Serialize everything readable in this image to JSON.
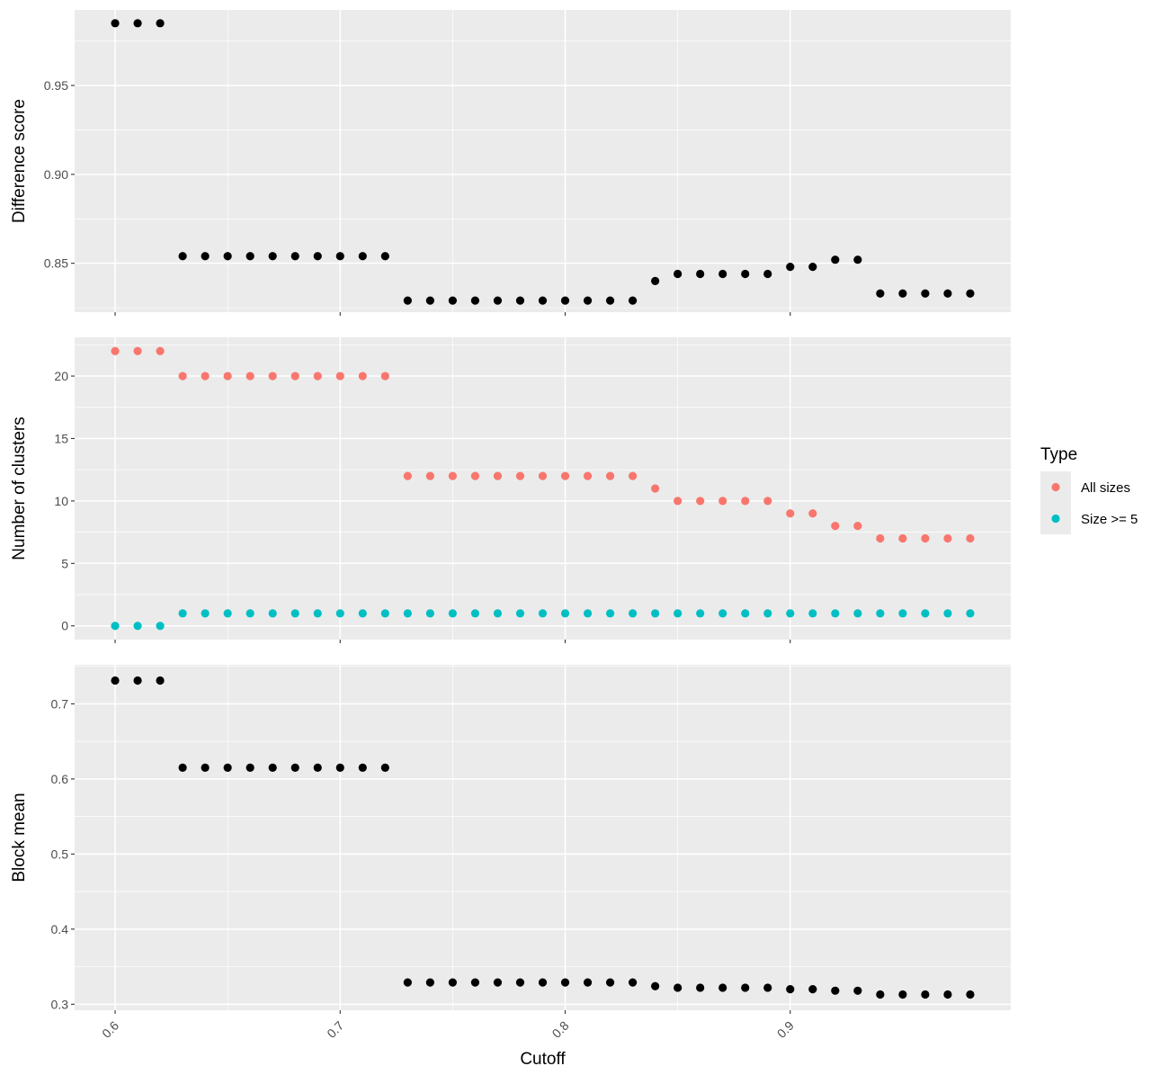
{
  "chart_data": [
    {
      "type": "scatter",
      "title": "",
      "xlabel": "",
      "ylabel": "Difference score",
      "xlim": [
        0.582,
        0.998
      ],
      "ylim": [
        0.8225,
        0.9925
      ],
      "yticks": [
        0.85,
        0.9,
        0.95
      ],
      "ytick_labels": [
        "0.85",
        "0.90",
        "0.95"
      ],
      "grid": true,
      "series": [
        {
          "color": "#000000",
          "x": [
            0.6,
            0.61,
            0.62,
            0.63,
            0.64,
            0.65,
            0.66,
            0.67,
            0.68,
            0.69,
            0.7,
            0.71,
            0.72,
            0.73,
            0.74,
            0.75,
            0.76,
            0.77,
            0.78,
            0.79,
            0.8,
            0.81,
            0.82,
            0.83,
            0.84,
            0.85,
            0.86,
            0.87,
            0.88,
            0.89,
            0.9,
            0.91,
            0.92,
            0.93,
            0.94,
            0.95,
            0.96,
            0.97,
            0.98
          ],
          "values": [
            0.985,
            0.985,
            0.985,
            0.854,
            0.854,
            0.854,
            0.854,
            0.854,
            0.854,
            0.854,
            0.854,
            0.854,
            0.854,
            0.829,
            0.829,
            0.829,
            0.829,
            0.829,
            0.829,
            0.829,
            0.829,
            0.829,
            0.829,
            0.829,
            0.84,
            0.844,
            0.844,
            0.844,
            0.844,
            0.844,
            0.848,
            0.848,
            0.852,
            0.852,
            0.833,
            0.833,
            0.833,
            0.833,
            0.833
          ]
        }
      ]
    },
    {
      "type": "scatter",
      "title": "",
      "xlabel": "",
      "ylabel": "Number of clusters",
      "xlim": [
        0.582,
        0.998
      ],
      "ylim": [
        -1.1,
        23.1
      ],
      "yticks": [
        0,
        5,
        10,
        15,
        20
      ],
      "ytick_labels": [
        "0",
        "5",
        "10",
        "15",
        "20"
      ],
      "grid": true,
      "legend": {
        "title": "Type",
        "placement": "right",
        "entries": [
          "All sizes",
          "Size >= 5"
        ]
      },
      "series": [
        {
          "name": "All sizes",
          "color": "#F8766D",
          "x": [
            0.6,
            0.61,
            0.62,
            0.63,
            0.64,
            0.65,
            0.66,
            0.67,
            0.68,
            0.69,
            0.7,
            0.71,
            0.72,
            0.73,
            0.74,
            0.75,
            0.76,
            0.77,
            0.78,
            0.79,
            0.8,
            0.81,
            0.82,
            0.83,
            0.84,
            0.85,
            0.86,
            0.87,
            0.88,
            0.89,
            0.9,
            0.91,
            0.92,
            0.93,
            0.94,
            0.95,
            0.96,
            0.97,
            0.98
          ],
          "values": [
            22,
            22,
            22,
            20,
            20,
            20,
            20,
            20,
            20,
            20,
            20,
            20,
            20,
            12,
            12,
            12,
            12,
            12,
            12,
            12,
            12,
            12,
            12,
            12,
            11,
            10,
            10,
            10,
            10,
            10,
            9,
            9,
            8,
            8,
            7,
            7,
            7,
            7,
            7
          ]
        },
        {
          "name": "Size >= 5",
          "color": "#00BFC4",
          "x": [
            0.6,
            0.61,
            0.62,
            0.63,
            0.64,
            0.65,
            0.66,
            0.67,
            0.68,
            0.69,
            0.7,
            0.71,
            0.72,
            0.73,
            0.74,
            0.75,
            0.76,
            0.77,
            0.78,
            0.79,
            0.8,
            0.81,
            0.82,
            0.83,
            0.84,
            0.85,
            0.86,
            0.87,
            0.88,
            0.89,
            0.9,
            0.91,
            0.92,
            0.93,
            0.94,
            0.95,
            0.96,
            0.97,
            0.98
          ],
          "values": [
            0,
            0,
            0,
            1,
            1,
            1,
            1,
            1,
            1,
            1,
            1,
            1,
            1,
            1,
            1,
            1,
            1,
            1,
            1,
            1,
            1,
            1,
            1,
            1,
            1,
            1,
            1,
            1,
            1,
            1,
            1,
            1,
            1,
            1,
            1,
            1,
            1,
            1,
            1
          ]
        }
      ]
    },
    {
      "type": "scatter",
      "title": "",
      "xlabel": "Cutoff",
      "ylabel": "Block mean",
      "xlim": [
        0.582,
        0.998
      ],
      "ylim": [
        0.292,
        0.752
      ],
      "xticks": [
        0.6,
        0.7,
        0.8,
        0.9
      ],
      "xtick_labels": [
        "0.6",
        "0.7",
        "0.8",
        "0.9"
      ],
      "yticks": [
        0.3,
        0.4,
        0.5,
        0.6,
        0.7
      ],
      "ytick_labels": [
        "0.3",
        "0.4",
        "0.5",
        "0.6",
        "0.7"
      ],
      "grid": true,
      "series": [
        {
          "color": "#000000",
          "x": [
            0.6,
            0.61,
            0.62,
            0.63,
            0.64,
            0.65,
            0.66,
            0.67,
            0.68,
            0.69,
            0.7,
            0.71,
            0.72,
            0.73,
            0.74,
            0.75,
            0.76,
            0.77,
            0.78,
            0.79,
            0.8,
            0.81,
            0.82,
            0.83,
            0.84,
            0.85,
            0.86,
            0.87,
            0.88,
            0.89,
            0.9,
            0.91,
            0.92,
            0.93,
            0.94,
            0.95,
            0.96,
            0.97,
            0.98
          ],
          "values": [
            0.731,
            0.731,
            0.731,
            0.615,
            0.615,
            0.615,
            0.615,
            0.615,
            0.615,
            0.615,
            0.615,
            0.615,
            0.615,
            0.329,
            0.329,
            0.329,
            0.329,
            0.329,
            0.329,
            0.329,
            0.329,
            0.329,
            0.329,
            0.329,
            0.324,
            0.322,
            0.322,
            0.322,
            0.322,
            0.322,
            0.32,
            0.32,
            0.318,
            0.318,
            0.313,
            0.313,
            0.313,
            0.313,
            0.313
          ]
        }
      ]
    }
  ],
  "colors": {
    "panel_bg": "#EBEBEB",
    "grid": "#FFFFFF",
    "tick_text": "#4D4D4D",
    "axis_title": "#000000"
  }
}
